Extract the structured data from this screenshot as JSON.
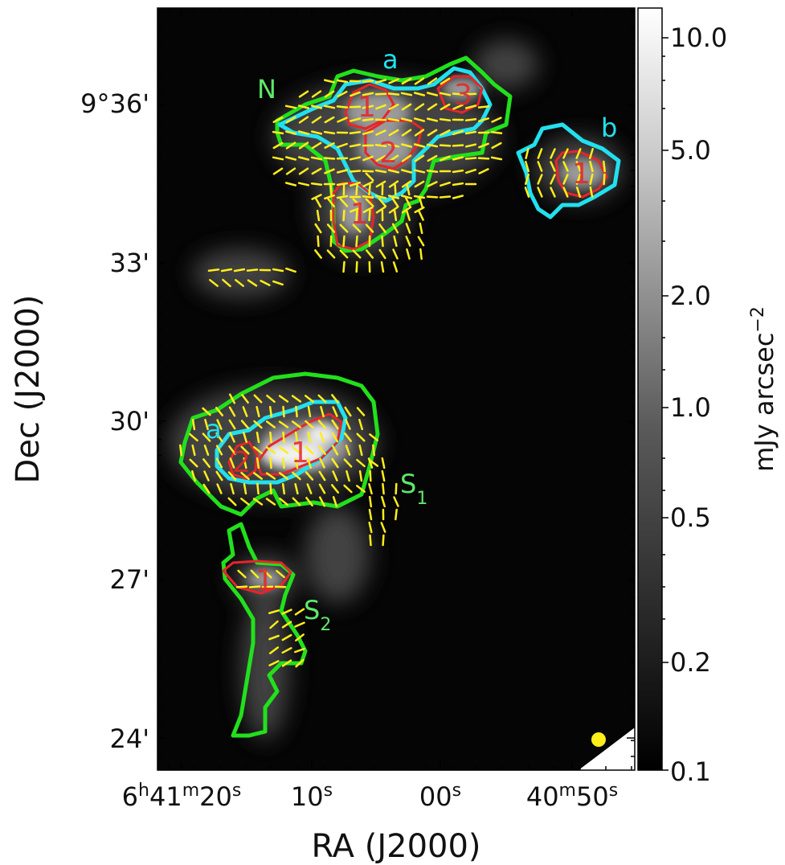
{
  "chart_data": {
    "type": "heatmap",
    "xlabel": "RA (J2000)",
    "ylabel": "Dec (J2000)",
    "x_ticks": [
      {
        "h": "6",
        "m": "41",
        "s": "20"
      },
      {
        "s": "10"
      },
      {
        "s": "00"
      },
      {
        "m": "40",
        "s": "50"
      }
    ],
    "y_ticks": [
      "9°36'",
      "33'",
      "30'",
      "27'",
      "24'"
    ],
    "colorbar": {
      "label": "mJy arcsec",
      "label_exponent": "−2",
      "scale": "log",
      "range": [
        0.1,
        12
      ],
      "ticks": [
        "10.0",
        "5.0",
        "2.0",
        "1.0",
        "0.5",
        "0.2",
        "0.1"
      ],
      "colormap": "gray"
    },
    "contour_colors": {
      "outer": "#22e01c",
      "middle": "#22e0ee",
      "inner": "#e8242a"
    },
    "vector_color": "#ffee1a",
    "beam_color": "#ffee1a",
    "regions": [
      {
        "name": "N",
        "color": "#5ee86a"
      },
      {
        "name": "a",
        "color": "#22e0ee"
      },
      {
        "name": "b",
        "color": "#22e0ee"
      },
      {
        "name": "S",
        "sub": "1",
        "color": "#5ee86a"
      },
      {
        "name": "S",
        "sub": "2",
        "color": "#5ee86a"
      },
      {
        "name": "a",
        "color": "#22e0ee"
      }
    ],
    "sub_labels": [
      "1",
      "2",
      "3",
      "1",
      "1",
      "1",
      "2",
      "1"
    ]
  }
}
